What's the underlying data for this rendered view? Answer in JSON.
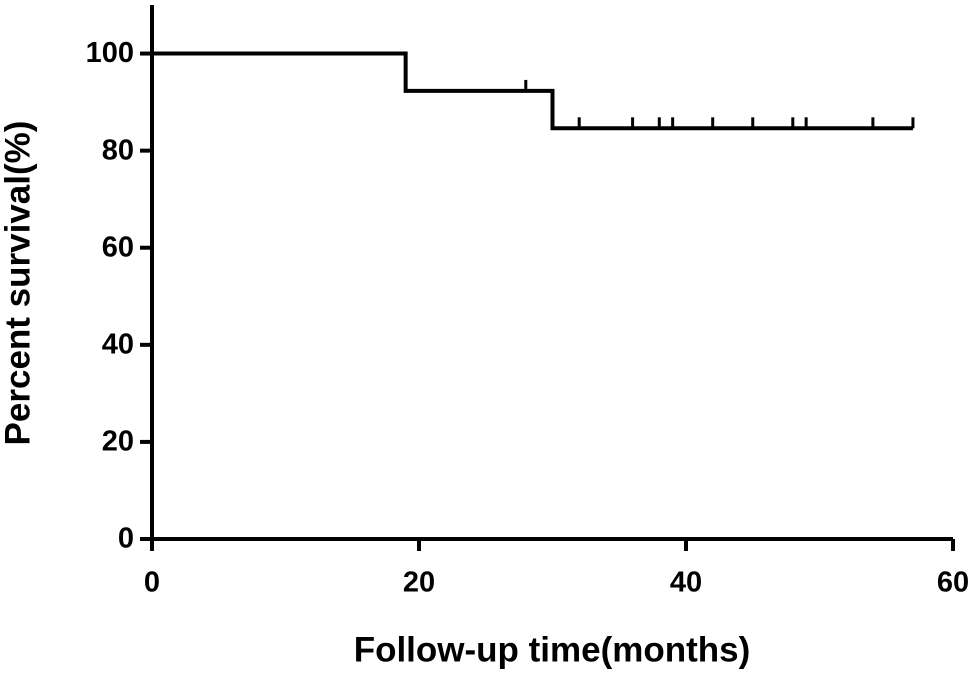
{
  "chart_data": {
    "type": "step",
    "x_label": "Follow-up time(months)",
    "y_label": "Percent survival(%)",
    "x": [
      0,
      19,
      19,
      30,
      30,
      57
    ],
    "values": [
      100,
      100,
      92.3,
      92.3,
      84.6,
      84.6
    ],
    "censored": {
      "x": [
        28,
        32,
        36,
        38,
        39,
        42,
        45,
        48,
        49,
        54,
        57
      ],
      "values": [
        92.3,
        84.6,
        84.6,
        84.6,
        84.6,
        84.6,
        84.6,
        84.6,
        84.6,
        84.6,
        84.6
      ]
    },
    "color": "#000000",
    "xlim": [
      0,
      60
    ],
    "xticks": [
      0,
      20,
      40,
      60
    ],
    "ylim": [
      0,
      110
    ],
    "yticks": [
      0,
      20,
      40,
      60,
      80,
      100
    ],
    "grid": false
  }
}
